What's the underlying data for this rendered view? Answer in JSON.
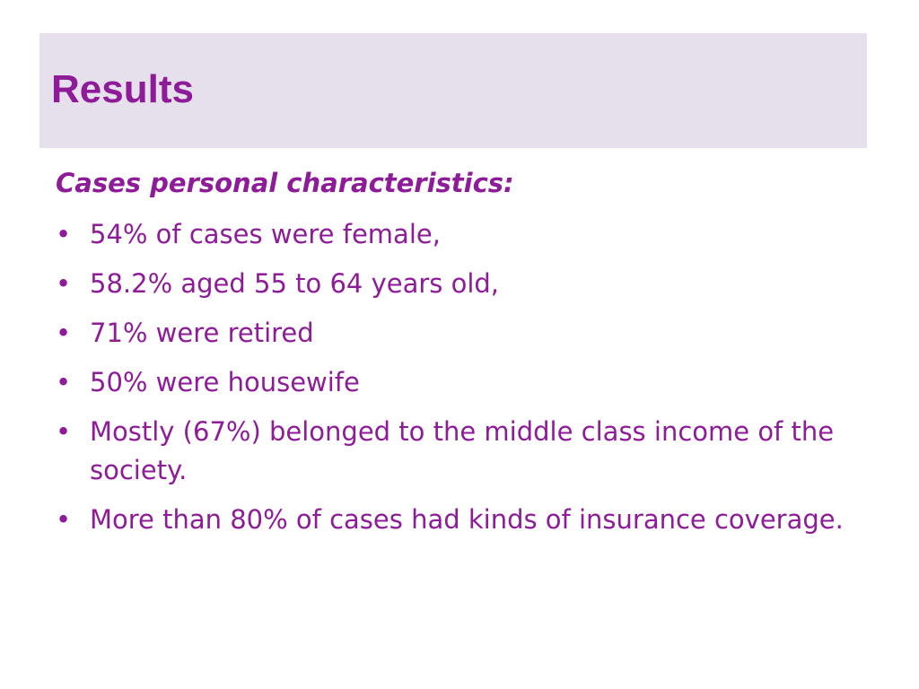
{
  "slide": {
    "title": "Results",
    "subtitle": "Cases personal characteristics:",
    "bullet_glyph": "•",
    "bullets": [
      "54% of cases were female,",
      "58.2% aged 55 to 64 years old,",
      "71% were retired",
      "50% were housewife",
      "Mostly (67%) belonged to the middle class income of the society.",
      "More than 80% of cases had kinds of insurance coverage."
    ]
  },
  "colors": {
    "accent": "#8e1b98",
    "title_band": "#e6dfec",
    "background": "#ffffff"
  }
}
